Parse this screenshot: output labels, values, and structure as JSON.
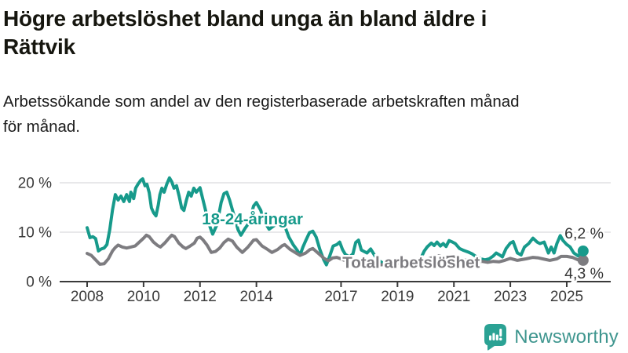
{
  "header": {
    "title_lines": [
      "Högre arbetslöshet bland unga än bland äldre i",
      "Rättvik"
    ],
    "subtitle_lines": [
      "Arbetssökande som andel av den registerbaserade arbetskraften månad",
      "för månad."
    ]
  },
  "chart_data": {
    "type": "line",
    "title": "Högre arbetslöshet bland unga än bland äldre i Rättvik",
    "subtitle": "Arbetssökande som andel av den registerbaserade arbetskraften månad för månad.",
    "xlabel": "",
    "ylabel": "",
    "unit": "%",
    "grid": "horizontal",
    "ylim": [
      0,
      22
    ],
    "xlim": [
      2007,
      2026.2
    ],
    "y_ticks": [
      {
        "value": 0,
        "label": "0 %"
      },
      {
        "value": 10,
        "label": "10 %"
      },
      {
        "value": 20,
        "label": "20 %"
      }
    ],
    "x_ticks": [
      {
        "value": 2008,
        "label": "2008"
      },
      {
        "value": 2010,
        "label": "2010"
      },
      {
        "value": 2012,
        "label": "2012"
      },
      {
        "value": 2014,
        "label": "2014"
      },
      {
        "value": 2017,
        "label": "2017"
      },
      {
        "value": 2019,
        "label": "2019"
      },
      {
        "value": 2021,
        "label": "2021"
      },
      {
        "value": 2023,
        "label": "2023"
      },
      {
        "value": 2025,
        "label": "2025"
      }
    ],
    "colors": {
      "axis": "#3a3a3a",
      "grid": "#e1e1e3",
      "end_label": "#333333",
      "halo": "#ffffff"
    },
    "series": [
      {
        "name": "18-24-åringar",
        "color": "#179a8b",
        "end_label": "6,2 %",
        "end_value": 6.2,
        "end_label_side": "above",
        "label_pos": {
          "x": 2012.07,
          "y": 12.7
        },
        "points": [
          [
            2008,
            10.9
          ],
          [
            2008.1,
            8.9
          ],
          [
            2008.2,
            9.1
          ],
          [
            2008.3,
            8.7
          ],
          [
            2008.4,
            6.2
          ],
          [
            2008.5,
            6.6
          ],
          [
            2008.6,
            6.8
          ],
          [
            2008.7,
            7.5
          ],
          [
            2008.8,
            10.5
          ],
          [
            2008.9,
            14.5
          ],
          [
            2009,
            17.6
          ],
          [
            2009.1,
            16.5
          ],
          [
            2009.2,
            17.3
          ],
          [
            2009.3,
            16.2
          ],
          [
            2009.4,
            17.6
          ],
          [
            2009.5,
            16.2
          ],
          [
            2009.55,
            18.1
          ],
          [
            2009.65,
            16.8
          ],
          [
            2009.72,
            18.9
          ],
          [
            2009.8,
            19.7
          ],
          [
            2009.9,
            20.5
          ],
          [
            2009.97,
            20.8
          ],
          [
            2010.05,
            19.4
          ],
          [
            2010.12,
            19.7
          ],
          [
            2010.2,
            18
          ],
          [
            2010.28,
            14.9
          ],
          [
            2010.36,
            13.9
          ],
          [
            2010.44,
            13.3
          ],
          [
            2010.52,
            15.5
          ],
          [
            2010.58,
            17.6
          ],
          [
            2010.65,
            18.9
          ],
          [
            2010.73,
            18.1
          ],
          [
            2010.82,
            19.7
          ],
          [
            2010.92,
            21
          ],
          [
            2011,
            20.2
          ],
          [
            2011.08,
            18.9
          ],
          [
            2011.17,
            19.4
          ],
          [
            2011.26,
            17.3
          ],
          [
            2011.35,
            14.9
          ],
          [
            2011.43,
            14.4
          ],
          [
            2011.52,
            16.5
          ],
          [
            2011.6,
            18.1
          ],
          [
            2011.69,
            17.3
          ],
          [
            2011.78,
            18.9
          ],
          [
            2011.87,
            18.1
          ],
          [
            2012,
            19
          ],
          [
            2012.15,
            15.5
          ],
          [
            2012.3,
            12
          ],
          [
            2012.45,
            9.6
          ],
          [
            2012.6,
            11.5
          ],
          [
            2012.75,
            16
          ],
          [
            2012.85,
            17.8
          ],
          [
            2012.95,
            18.1
          ],
          [
            2013.05,
            16.5
          ],
          [
            2013.2,
            13.5
          ],
          [
            2013.35,
            10.5
          ],
          [
            2013.45,
            9.4
          ],
          [
            2013.6,
            10.8
          ],
          [
            2013.75,
            12
          ],
          [
            2013.9,
            15.3
          ],
          [
            2014,
            16
          ],
          [
            2014.15,
            14.5
          ],
          [
            2014.3,
            12
          ],
          [
            2014.45,
            10.6
          ],
          [
            2014.6,
            11.2
          ],
          [
            2014.75,
            11.9
          ],
          [
            2014.9,
            12.3
          ],
          [
            2015,
            11.3
          ],
          [
            2015.15,
            9
          ],
          [
            2015.3,
            7.5
          ],
          [
            2015.45,
            6.3
          ],
          [
            2015.55,
            5.4
          ],
          [
            2015.65,
            7
          ],
          [
            2015.75,
            8.3
          ],
          [
            2015.88,
            9.9
          ],
          [
            2016,
            10.2
          ],
          [
            2016.12,
            9
          ],
          [
            2016.25,
            6.5
          ],
          [
            2016.38,
            4.5
          ],
          [
            2016.48,
            3.4
          ],
          [
            2016.6,
            5.2
          ],
          [
            2016.72,
            7.2
          ],
          [
            2016.85,
            7.5
          ],
          [
            2016.95,
            8
          ],
          [
            2017.05,
            6.5
          ],
          [
            2017.15,
            5.5
          ],
          [
            2017.3,
            5
          ],
          [
            2017.42,
            5.6
          ],
          [
            2017.52,
            7.9
          ],
          [
            2017.62,
            8.4
          ],
          [
            2017.72,
            6.4
          ],
          [
            2017.82,
            6.1
          ],
          [
            2017.92,
            5.8
          ],
          [
            2018.05,
            6.6
          ],
          [
            2018.2,
            5.2
          ],
          [
            2018.35,
            4.2
          ],
          [
            2018.5,
            3.7
          ],
          [
            2018.65,
            3.9
          ],
          [
            2018.8,
            3.5
          ],
          [
            2018.95,
            3.9
          ],
          [
            2019.1,
            3.6
          ],
          [
            2019.25,
            3.3
          ],
          [
            2019.4,
            3.7
          ],
          [
            2019.55,
            3.5
          ],
          [
            2019.7,
            3.9
          ],
          [
            2019.85,
            5
          ],
          [
            2019.95,
            6.2
          ],
          [
            2020.05,
            7
          ],
          [
            2020.2,
            7.8
          ],
          [
            2020.3,
            7.3
          ],
          [
            2020.4,
            8
          ],
          [
            2020.52,
            7.2
          ],
          [
            2020.62,
            7.7
          ],
          [
            2020.72,
            7.1
          ],
          [
            2020.83,
            8.3
          ],
          [
            2020.95,
            8
          ],
          [
            2021.05,
            7.7
          ],
          [
            2021.2,
            6.7
          ],
          [
            2021.35,
            6.3
          ],
          [
            2021.5,
            6
          ],
          [
            2021.65,
            5.6
          ],
          [
            2021.8,
            5
          ],
          [
            2021.95,
            4.6
          ],
          [
            2022.1,
            4.4
          ],
          [
            2022.25,
            4.6
          ],
          [
            2022.4,
            5.2
          ],
          [
            2022.5,
            5.8
          ],
          [
            2022.62,
            5.4
          ],
          [
            2022.72,
            5
          ],
          [
            2022.85,
            6.7
          ],
          [
            2023,
            7.8
          ],
          [
            2023.1,
            8.1
          ],
          [
            2023.25,
            5.8
          ],
          [
            2023.38,
            5.4
          ],
          [
            2023.5,
            7
          ],
          [
            2023.65,
            7.7
          ],
          [
            2023.8,
            8.8
          ],
          [
            2023.95,
            8
          ],
          [
            2024.05,
            7.7
          ],
          [
            2024.2,
            8
          ],
          [
            2024.35,
            5.8
          ],
          [
            2024.45,
            7
          ],
          [
            2024.55,
            5.8
          ],
          [
            2024.65,
            7.7
          ],
          [
            2024.77,
            9.3
          ],
          [
            2024.87,
            8.3
          ],
          [
            2025,
            7.5
          ],
          [
            2025.12,
            7
          ],
          [
            2025.25,
            5.8
          ],
          [
            2025.4,
            5.2
          ],
          [
            2025.58,
            6.2
          ]
        ]
      },
      {
        "name": "Total arbetslöshet",
        "color": "#7d7c80",
        "end_label": "4,3 %",
        "end_value": 4.3,
        "end_label_side": "below",
        "label_pos": {
          "x": 2017.05,
          "y": 3.9
        },
        "points": [
          [
            2008,
            5.7
          ],
          [
            2008.15,
            5.3
          ],
          [
            2008.3,
            4.4
          ],
          [
            2008.45,
            3.5
          ],
          [
            2008.6,
            3.6
          ],
          [
            2008.75,
            4.6
          ],
          [
            2008.9,
            6.2
          ],
          [
            2009,
            6.9
          ],
          [
            2009.1,
            7.4
          ],
          [
            2009.25,
            7
          ],
          [
            2009.4,
            6.8
          ],
          [
            2009.55,
            7
          ],
          [
            2009.7,
            7.2
          ],
          [
            2009.85,
            8
          ],
          [
            2010,
            8.8
          ],
          [
            2010.1,
            9.4
          ],
          [
            2010.2,
            9.1
          ],
          [
            2010.35,
            8
          ],
          [
            2010.5,
            7.3
          ],
          [
            2010.6,
            7
          ],
          [
            2010.75,
            7.8
          ],
          [
            2010.9,
            8.8
          ],
          [
            2011,
            9.4
          ],
          [
            2011.1,
            9.1
          ],
          [
            2011.25,
            7.8
          ],
          [
            2011.4,
            7
          ],
          [
            2011.5,
            6.7
          ],
          [
            2011.65,
            7.2
          ],
          [
            2011.8,
            7.8
          ],
          [
            2011.9,
            8.8
          ],
          [
            2012,
            9
          ],
          [
            2012.1,
            8.5
          ],
          [
            2012.25,
            7.4
          ],
          [
            2012.4,
            5.9
          ],
          [
            2012.55,
            6.1
          ],
          [
            2012.7,
            6.8
          ],
          [
            2012.85,
            7.9
          ],
          [
            2013,
            8.6
          ],
          [
            2013.15,
            8.2
          ],
          [
            2013.3,
            7
          ],
          [
            2013.5,
            5.9
          ],
          [
            2013.7,
            7
          ],
          [
            2013.9,
            8.4
          ],
          [
            2014,
            8.5
          ],
          [
            2014.2,
            7.2
          ],
          [
            2014.4,
            6.5
          ],
          [
            2014.55,
            5.9
          ],
          [
            2014.75,
            6.5
          ],
          [
            2014.9,
            7.2
          ],
          [
            2015,
            7.5
          ],
          [
            2015.2,
            6.5
          ],
          [
            2015.4,
            5.8
          ],
          [
            2015.55,
            5.3
          ],
          [
            2015.75,
            5.8
          ],
          [
            2015.9,
            6.5
          ],
          [
            2016,
            6.7
          ],
          [
            2016.2,
            5.7
          ],
          [
            2016.4,
            4.7
          ],
          [
            2016.55,
            4.2
          ],
          [
            2016.7,
            4.8
          ],
          [
            2016.85,
            4.9
          ],
          [
            2017,
            4.6
          ],
          [
            2017.2,
            4.1
          ],
          [
            2017.4,
            3.8
          ],
          [
            2017.6,
            3.9
          ],
          [
            2017.8,
            4.1
          ],
          [
            2018,
            4
          ],
          [
            2018.2,
            3.7
          ],
          [
            2018.4,
            3.4
          ],
          [
            2018.6,
            3.5
          ],
          [
            2018.8,
            3.7
          ],
          [
            2019,
            3.8
          ],
          [
            2019.2,
            3.5
          ],
          [
            2019.4,
            3.4
          ],
          [
            2019.6,
            3.6
          ],
          [
            2019.8,
            3.9
          ],
          [
            2019.95,
            4.2
          ],
          [
            2020.1,
            4.6
          ],
          [
            2020.3,
            5
          ],
          [
            2020.45,
            5.2
          ],
          [
            2020.6,
            5
          ],
          [
            2020.8,
            4.9
          ],
          [
            2021,
            5
          ],
          [
            2021.2,
            4.6
          ],
          [
            2021.45,
            4.3
          ],
          [
            2021.7,
            4.2
          ],
          [
            2022,
            4.1
          ],
          [
            2022.2,
            3.9
          ],
          [
            2022.4,
            4.1
          ],
          [
            2022.6,
            4
          ],
          [
            2022.8,
            4.3
          ],
          [
            2023,
            4.7
          ],
          [
            2023.25,
            4.3
          ],
          [
            2023.55,
            4.6
          ],
          [
            2023.8,
            4.9
          ],
          [
            2024,
            4.8
          ],
          [
            2024.15,
            4.6
          ],
          [
            2024.4,
            4.3
          ],
          [
            2024.65,
            4.6
          ],
          [
            2024.8,
            5.1
          ],
          [
            2025,
            5.1
          ],
          [
            2025.2,
            4.9
          ],
          [
            2025.4,
            4.4
          ],
          [
            2025.58,
            4.3
          ]
        ]
      }
    ],
    "legend_position": "inline-labels"
  },
  "footer": {
    "brand": "Newsworthy",
    "brand_color": "#3f968f",
    "logo_color": "#2ba294"
  }
}
